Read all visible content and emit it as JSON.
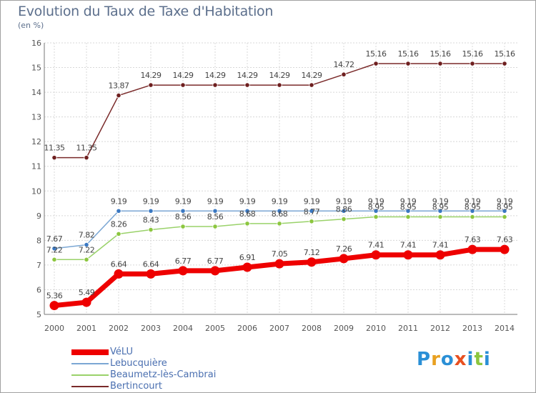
{
  "header": {
    "title": "Evolution du Taux de Taxe d'Habitation",
    "unit": "(en %)"
  },
  "logo": {
    "letters": [
      "P",
      "r",
      "o",
      "x",
      "i",
      "t",
      "i"
    ],
    "colors": [
      "#2a8fd6",
      "#e8a020",
      "#2a8fd6",
      "#e85020",
      "#2a8fd6",
      "#8cc63f",
      "#2a8fd6"
    ]
  },
  "colors": {
    "axis_text": "#555555",
    "grid": "#d8d8d8",
    "label_text": "#444444"
  },
  "chart_data": {
    "type": "line",
    "title": "Evolution du Taux de Taxe d'Habitation",
    "ylabel": "(en %)",
    "xlabel": "",
    "x": [
      "2000",
      "2001",
      "2002",
      "2003",
      "2004",
      "2005",
      "2006",
      "2007",
      "2008",
      "2009",
      "2010",
      "2011",
      "2012",
      "2013",
      "2014"
    ],
    "ylim": [
      5,
      16
    ],
    "yticks": [
      5,
      6,
      7,
      8,
      9,
      10,
      11,
      12,
      13,
      14,
      15,
      16
    ],
    "grid": true,
    "legend_position": "bottom-left",
    "series": [
      {
        "name": "VéLU",
        "color": "#ee0000",
        "marker_color": "#ee0000",
        "thick": true,
        "values": [
          5.36,
          5.49,
          6.64,
          6.64,
          6.77,
          6.77,
          6.91,
          7.05,
          7.12,
          7.26,
          7.41,
          7.41,
          7.41,
          7.63,
          7.63
        ],
        "labels": [
          "5.36",
          "5.49",
          "6.64",
          "6.64",
          "6.77",
          "6.77",
          "6.91",
          "7.05",
          "7.12",
          "7.26",
          "7.41",
          "7.41",
          "7.41",
          "7.63",
          "7.63"
        ]
      },
      {
        "name": "Lebucquière",
        "color": "#7ba7d4",
        "marker_color": "#3a78c2",
        "thick": false,
        "values": [
          7.67,
          7.82,
          9.19,
          9.19,
          9.19,
          9.19,
          9.19,
          9.19,
          9.19,
          9.19,
          9.19,
          9.19,
          9.19,
          9.19,
          9.19
        ],
        "labels": [
          "7.67",
          "7.82",
          "9.19",
          "9.19",
          "9.19",
          "9.19",
          "9.19",
          "9.19",
          "9.19",
          "9.19",
          "9.19",
          "9.19",
          "9.19",
          "9.19",
          "9.19"
        ]
      },
      {
        "name": "Beaumetz-lès-Cambrai",
        "color": "#9ad26a",
        "marker_color": "#8cc63f",
        "thick": false,
        "values": [
          7.22,
          7.22,
          8.26,
          8.43,
          8.56,
          8.56,
          8.68,
          8.68,
          8.77,
          8.86,
          8.95,
          8.95,
          8.95,
          8.95,
          8.95
        ],
        "labels": [
          "7.22",
          "7.22",
          "8.26",
          "8.43",
          "8.56",
          "8.56",
          "8.68",
          "8.68",
          "8.77",
          "8.86",
          "8.95",
          "8.95",
          "8.95",
          "8.95",
          "8.95"
        ]
      },
      {
        "name": "Bertincourt",
        "color": "#7a2a2a",
        "marker_color": "#6e1f1f",
        "thick": false,
        "values": [
          11.35,
          11.35,
          13.87,
          14.29,
          14.29,
          14.29,
          14.29,
          14.29,
          14.29,
          14.72,
          15.16,
          15.16,
          15.16,
          15.16,
          15.16
        ],
        "labels": [
          "11.35",
          "11.35",
          "13.87",
          "14.29",
          "14.29",
          "14.29",
          "14.29",
          "14.29",
          "14.29",
          "14.72",
          "15.16",
          "15.16",
          "15.16",
          "15.16",
          "15.16"
        ]
      }
    ]
  }
}
